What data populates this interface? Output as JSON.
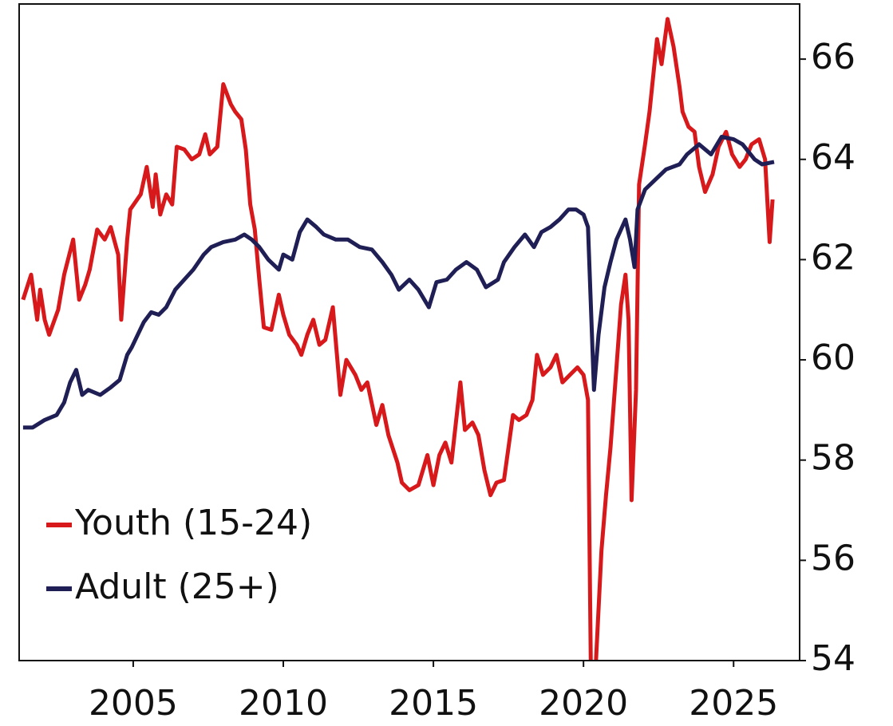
{
  "chart_data": {
    "type": "line",
    "xlim": [
      2001.2,
      2027.2
    ],
    "ylim": [
      54,
      67.1
    ],
    "xticks": [
      2005,
      2010,
      2015,
      2020,
      2025
    ],
    "yticks": [
      54,
      56,
      58,
      60,
      62,
      64,
      66
    ],
    "y_axis_side": "right",
    "legend": "lower left",
    "series": [
      {
        "name": "Youth (15-24)",
        "color": "#d7191c",
        "x": [
          2001.33,
          2001.6,
          2001.8,
          2001.9,
          2002.05,
          2002.2,
          2002.5,
          2002.7,
          2003.0,
          2003.2,
          2003.4,
          2003.55,
          2003.8,
          2004.05,
          2004.25,
          2004.5,
          2004.6,
          2004.8,
          2004.9,
          2005.25,
          2005.45,
          2005.65,
          2005.75,
          2005.9,
          2006.1,
          2006.3,
          2006.45,
          2006.7,
          2006.95,
          2007.2,
          2007.4,
          2007.55,
          2007.8,
          2008.0,
          2008.25,
          2008.4,
          2008.6,
          2008.75,
          2008.9,
          2009.05,
          2009.2,
          2009.35,
          2009.6,
          2009.85,
          2010.0,
          2010.2,
          2010.45,
          2010.6,
          2010.8,
          2011.0,
          2011.2,
          2011.4,
          2011.65,
          2011.9,
          2012.1,
          2012.4,
          2012.6,
          2012.8,
          2013.1,
          2013.3,
          2013.5,
          2013.8,
          2013.95,
          2014.2,
          2014.5,
          2014.8,
          2015.0,
          2015.2,
          2015.4,
          2015.6,
          2015.9,
          2016.05,
          2016.3,
          2016.5,
          2016.7,
          2016.9,
          2017.1,
          2017.35,
          2017.65,
          2017.85,
          2018.1,
          2018.3,
          2018.45,
          2018.65,
          2018.9,
          2019.1,
          2019.3,
          2019.55,
          2019.8,
          2020.0,
          2020.15,
          2020.25,
          2020.4,
          2020.6,
          2020.75,
          2020.9,
          2021.1,
          2021.25,
          2021.4,
          2021.5,
          2021.6,
          2021.75,
          2021.85,
          2022.05,
          2022.2,
          2022.45,
          2022.6,
          2022.8,
          2023.0,
          2023.2,
          2023.3,
          2023.5,
          2023.7,
          2023.85,
          2024.05,
          2024.3,
          2024.5,
          2024.75,
          2024.95,
          2025.2,
          2025.4,
          2025.6,
          2025.85,
          2026.05,
          2026.2,
          2026.3
        ],
        "values": [
          61.2,
          61.7,
          60.8,
          61.4,
          60.8,
          60.5,
          61.0,
          61.7,
          62.4,
          61.2,
          61.5,
          61.8,
          62.6,
          62.4,
          62.65,
          62.1,
          60.8,
          62.4,
          63.0,
          63.3,
          63.85,
          63.05,
          63.7,
          62.9,
          63.3,
          63.1,
          64.25,
          64.2,
          64.0,
          64.1,
          64.5,
          64.1,
          64.25,
          65.5,
          65.1,
          64.95,
          64.8,
          64.2,
          63.1,
          62.6,
          61.6,
          60.65,
          60.6,
          61.3,
          60.9,
          60.5,
          60.3,
          60.1,
          60.5,
          60.8,
          60.3,
          60.4,
          61.05,
          59.3,
          60.0,
          59.7,
          59.4,
          59.55,
          58.7,
          59.1,
          58.5,
          57.95,
          57.55,
          57.4,
          57.5,
          58.1,
          57.5,
          58.1,
          58.35,
          57.95,
          59.55,
          58.6,
          58.75,
          58.5,
          57.8,
          57.3,
          57.55,
          57.6,
          58.9,
          58.8,
          58.9,
          59.2,
          60.1,
          59.7,
          59.85,
          60.1,
          59.55,
          59.7,
          59.85,
          59.7,
          59.2,
          53.5,
          53.8,
          56.2,
          57.3,
          58.25,
          59.85,
          61.1,
          61.7,
          60.8,
          57.2,
          59.4,
          63.5,
          64.3,
          64.95,
          66.4,
          65.9,
          66.8,
          66.25,
          65.45,
          64.95,
          64.65,
          64.55,
          63.85,
          63.35,
          63.7,
          64.25,
          64.55,
          64.1,
          63.85,
          64.0,
          64.3,
          64.4,
          64.0,
          62.35,
          63.2
        ]
      },
      {
        "name": "Adult (25+)",
        "color": "#1f1f55",
        "x": [
          2001.33,
          2001.65,
          2002.05,
          2002.45,
          2002.7,
          2002.9,
          2003.1,
          2003.3,
          2003.5,
          2003.9,
          2004.25,
          2004.55,
          2004.8,
          2004.95,
          2005.15,
          2005.35,
          2005.6,
          2005.85,
          2006.1,
          2006.4,
          2006.7,
          2007.0,
          2007.35,
          2007.6,
          2008.0,
          2008.4,
          2008.7,
          2008.95,
          2009.2,
          2009.5,
          2009.85,
          2010.0,
          2010.3,
          2010.55,
          2010.8,
          2011.1,
          2011.35,
          2011.75,
          2012.15,
          2012.55,
          2012.95,
          2013.3,
          2013.6,
          2013.85,
          2014.2,
          2014.5,
          2014.85,
          2015.1,
          2015.45,
          2015.75,
          2016.1,
          2016.45,
          2016.75,
          2017.15,
          2017.35,
          2017.7,
          2018.05,
          2018.35,
          2018.6,
          2018.9,
          2019.2,
          2019.5,
          2019.75,
          2020.0,
          2020.15,
          2020.35,
          2020.5,
          2020.7,
          2020.9,
          2021.1,
          2021.4,
          2021.55,
          2021.7,
          2021.8,
          2022.05,
          2022.4,
          2022.75,
          2023.2,
          2023.45,
          2023.85,
          2024.25,
          2024.6,
          2025.0,
          2025.3,
          2025.7,
          2025.95,
          2026.35
        ],
        "values": [
          58.65,
          58.65,
          58.8,
          58.9,
          59.15,
          59.55,
          59.8,
          59.3,
          59.4,
          59.3,
          59.45,
          59.6,
          60.1,
          60.25,
          60.5,
          60.75,
          60.95,
          60.9,
          61.05,
          61.4,
          61.6,
          61.8,
          62.1,
          62.25,
          62.35,
          62.4,
          62.5,
          62.4,
          62.25,
          62.0,
          61.8,
          62.1,
          62.0,
          62.55,
          62.8,
          62.65,
          62.5,
          62.4,
          62.4,
          62.25,
          62.2,
          61.95,
          61.7,
          61.4,
          61.6,
          61.4,
          61.05,
          61.55,
          61.6,
          61.8,
          61.95,
          61.8,
          61.45,
          61.6,
          61.95,
          62.25,
          62.5,
          62.25,
          62.55,
          62.65,
          62.8,
          63.0,
          63.0,
          62.9,
          62.65,
          59.4,
          60.5,
          61.45,
          61.95,
          62.4,
          62.8,
          62.4,
          61.85,
          63.0,
          63.4,
          63.6,
          63.8,
          63.9,
          64.1,
          64.3,
          64.1,
          64.45,
          64.4,
          64.3,
          64.0,
          63.9,
          63.95
        ]
      }
    ]
  }
}
